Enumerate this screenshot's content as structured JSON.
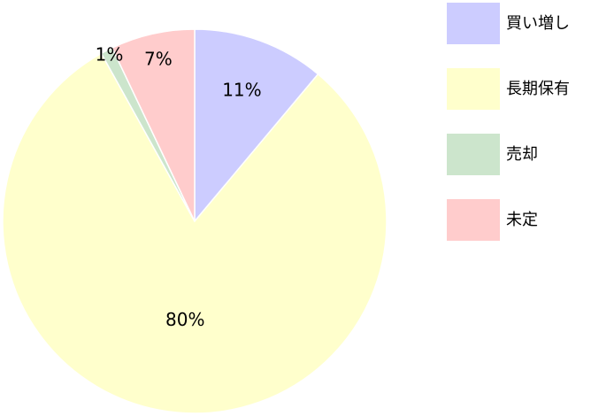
{
  "chart_data": {
    "type": "pie",
    "categories": [
      "買い増し",
      "長期保有",
      "売却",
      "未定"
    ],
    "values": [
      11,
      80,
      1,
      7
    ],
    "value_labels": [
      "11%",
      "80%",
      "1%",
      "7%"
    ],
    "colors": [
      "#ccccff",
      "#ffffcc",
      "#cce5cc",
      "#ffcccc"
    ],
    "legend": "right"
  }
}
